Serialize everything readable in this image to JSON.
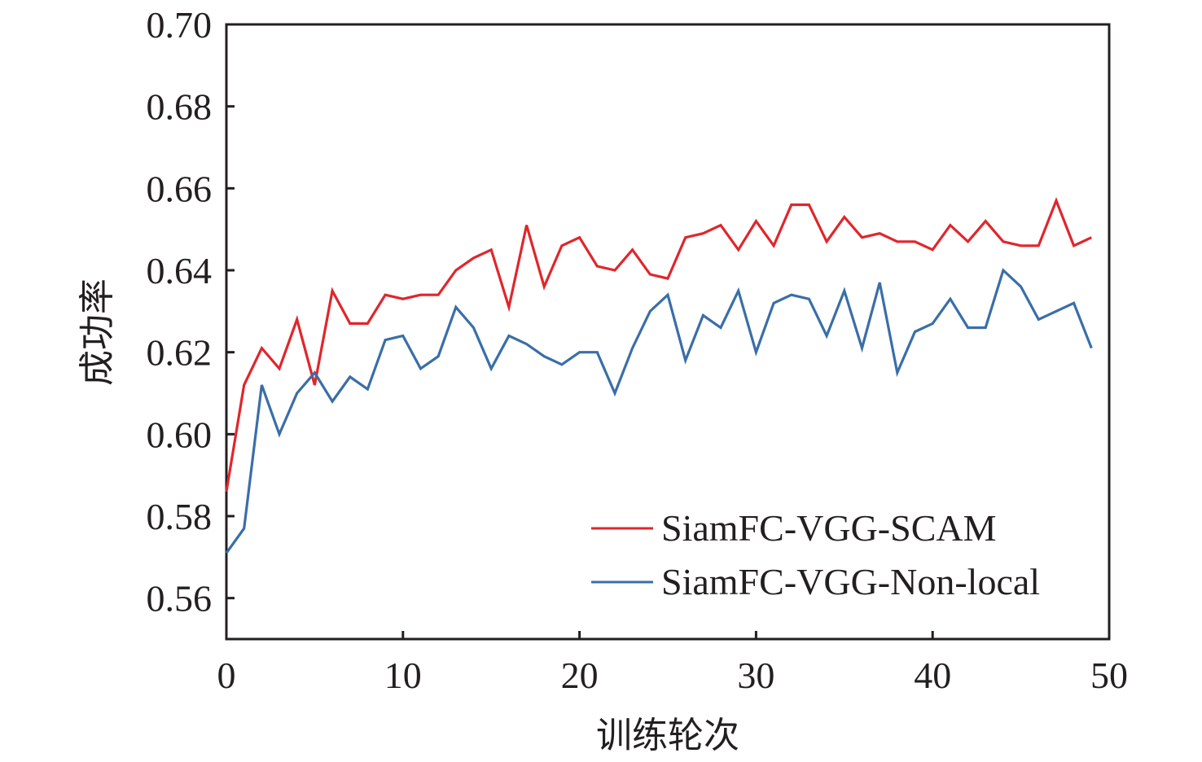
{
  "chart_data": {
    "type": "line",
    "title": "",
    "xlabel": "训练轮次",
    "ylabel": "成功率",
    "xlim": [
      0,
      50
    ],
    "ylim": [
      0.55,
      0.7
    ],
    "xticks": [
      0,
      10,
      20,
      30,
      40,
      50
    ],
    "xtick_labels": [
      "0",
      "10",
      "20",
      "30",
      "40",
      "50"
    ],
    "yticks": [
      0.56,
      0.58,
      0.6,
      0.62,
      0.64,
      0.66,
      0.68,
      0.7
    ],
    "ytick_labels": [
      "0.56",
      "0.58",
      "0.60",
      "0.62",
      "0.64",
      "0.66",
      "0.68",
      "0.70"
    ],
    "grid": false,
    "legend_position": "bottom-right",
    "x": [
      0,
      1,
      2,
      3,
      4,
      5,
      6,
      7,
      8,
      9,
      10,
      11,
      12,
      13,
      14,
      15,
      16,
      17,
      18,
      19,
      20,
      21,
      22,
      23,
      24,
      25,
      26,
      27,
      28,
      29,
      30,
      31,
      32,
      33,
      34,
      35,
      36,
      37,
      38,
      39,
      40,
      41,
      42,
      43,
      44,
      45,
      46,
      47,
      48,
      49
    ],
    "series": [
      {
        "name": "SiamFC-VGG-SCAM",
        "color": "#e0262c",
        "values": [
          0.586,
          0.612,
          0.621,
          0.616,
          0.628,
          0.612,
          0.635,
          0.627,
          0.627,
          0.634,
          0.633,
          0.634,
          0.634,
          0.64,
          0.643,
          0.645,
          0.631,
          0.651,
          0.636,
          0.646,
          0.648,
          0.641,
          0.64,
          0.645,
          0.639,
          0.638,
          0.648,
          0.649,
          0.651,
          0.645,
          0.652,
          0.646,
          0.656,
          0.656,
          0.647,
          0.653,
          0.648,
          0.649,
          0.647,
          0.647,
          0.645,
          0.651,
          0.647,
          0.652,
          0.647,
          0.646,
          0.646,
          0.657,
          0.646,
          0.648
        ]
      },
      {
        "name": "SiamFC-VGG-Non-local",
        "color": "#3a6ea8",
        "values": [
          0.571,
          0.577,
          0.612,
          0.6,
          0.61,
          0.615,
          0.608,
          0.614,
          0.611,
          0.623,
          0.624,
          0.616,
          0.619,
          0.631,
          0.626,
          0.616,
          0.624,
          0.622,
          0.619,
          0.617,
          0.62,
          0.62,
          0.61,
          0.621,
          0.63,
          0.634,
          0.618,
          0.629,
          0.626,
          0.635,
          0.62,
          0.632,
          0.634,
          0.633,
          0.624,
          0.635,
          0.621,
          0.637,
          0.615,
          0.625,
          0.627,
          0.633,
          0.626,
          0.626,
          0.64,
          0.636,
          0.628,
          0.63,
          0.632,
          0.621
        ]
      }
    ]
  }
}
